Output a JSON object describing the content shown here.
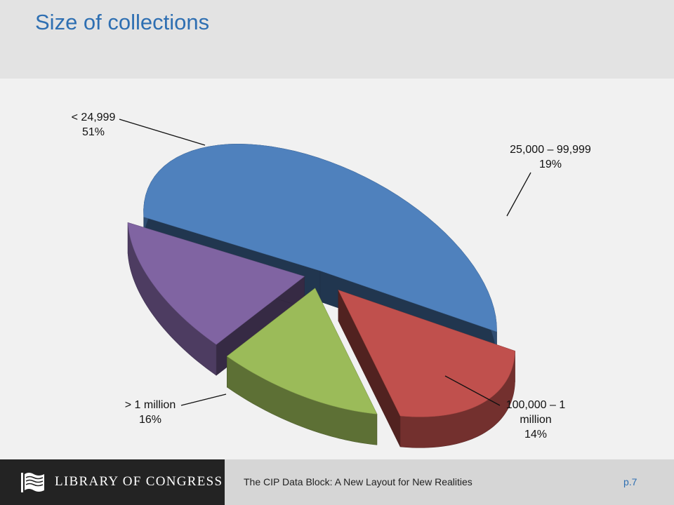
{
  "slide": {
    "title": "Size of collections"
  },
  "chart_data": {
    "type": "pie",
    "style": "3d-exploded",
    "title": "Size of collections",
    "slices": [
      {
        "label": "< 24,999",
        "value": 51,
        "value_label": "51%",
        "color": "#4f81bd"
      },
      {
        "label": "25,000 – 99,999",
        "value": 19,
        "value_label": "19%",
        "color": "#c0504d"
      },
      {
        "label": "100,000 – 1 million",
        "label_lines": [
          "100,000 – 1",
          "million"
        ],
        "value": 14,
        "value_label": "14%",
        "color": "#9bbb59"
      },
      {
        "label": "> 1 million",
        "value": 16,
        "value_label": "16%",
        "color": "#8064a2"
      }
    ]
  },
  "footer": {
    "logo_text": "LIBRARY OF CONGRESS",
    "caption": "The CIP Data Block:  A New Layout for New Realities",
    "page": "p.7"
  }
}
